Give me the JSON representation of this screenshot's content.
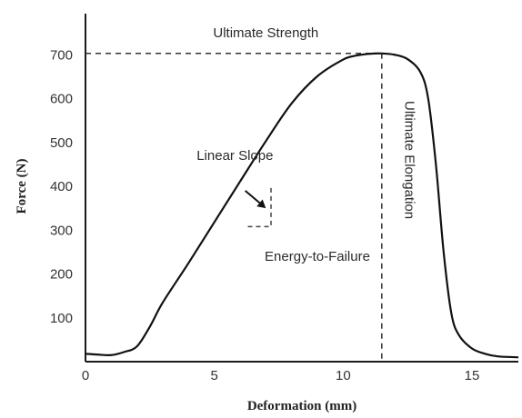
{
  "chart_data": {
    "type": "line",
    "title": "",
    "xlabel": "Deformation (mm)",
    "ylabel": "Force (N)",
    "xlim": [
      0,
      16.8
    ],
    "ylim": [
      0,
      800
    ],
    "x_ticks": [
      0,
      5,
      10,
      15
    ],
    "y_ticks": [
      100,
      200,
      300,
      400,
      500,
      600,
      700
    ],
    "grid": false,
    "legend": "none",
    "series": [
      {
        "x": [
          0,
          0.5,
          1.0,
          1.5,
          2.0,
          2.5,
          3.0,
          4.0,
          5.0,
          6.0,
          7.0,
          8.0,
          9.0,
          10.0,
          10.5,
          11.0,
          11.5,
          12.0,
          12.5,
          13.0,
          13.3,
          13.6,
          13.9,
          14.2,
          14.5,
          15.0,
          15.5,
          16.0,
          16.8
        ],
        "y": [
          18,
          16,
          15,
          22,
          35,
          80,
          135,
          225,
          318,
          411,
          503,
          589,
          651,
          689,
          698,
          702,
          703,
          700,
          690,
          660,
          600,
          450,
          250,
          110,
          60,
          30,
          18,
          12,
          10
        ]
      }
    ],
    "annotations": [
      {
        "text": "Ultimate Strength",
        "x": 7.0,
        "y": 740
      },
      {
        "text": "Linear Slope",
        "x": 5.8,
        "y": 460
      },
      {
        "text": "Energy-to-Failure",
        "x": 9.0,
        "y": 230
      },
      {
        "text": "Ultimate Elongation",
        "x": 12.4,
        "y": 460
      }
    ],
    "reference_lines": {
      "ultimate_strength_y": 703,
      "ultimate_elongation_x": 11.5
    },
    "slope_indicator": {
      "x_from": 6.3,
      "x_to": 7.2,
      "y_from": 308,
      "y_to": 403
    },
    "arrow": {
      "from": [
        6.2,
        390
      ],
      "to": [
        7.0,
        350
      ]
    }
  }
}
